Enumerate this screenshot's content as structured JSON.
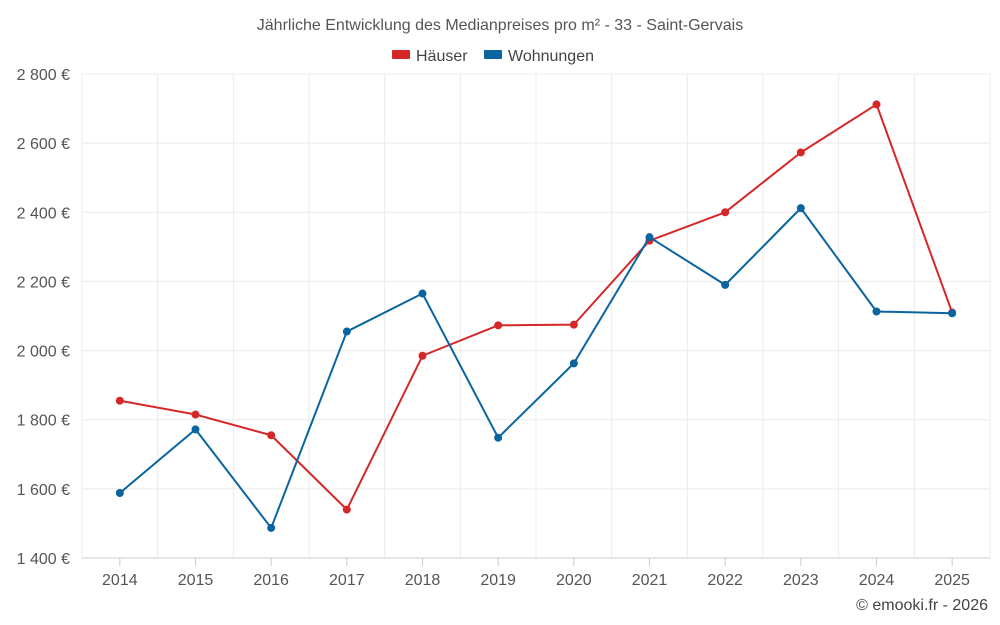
{
  "chart_data": {
    "type": "line",
    "title": "Jährliche Entwicklung des Medianpreises pro m² - 33 - Saint-Gervais",
    "x": [
      "2014",
      "2015",
      "2016",
      "2017",
      "2018",
      "2019",
      "2020",
      "2021",
      "2022",
      "2023",
      "2024",
      "2025"
    ],
    "series": [
      {
        "name": "Häuser",
        "color": "#d62728",
        "values": [
          1855,
          1815,
          1755,
          1540,
          1985,
          2073,
          2075,
          2318,
          2400,
          2573,
          2712,
          2110
        ]
      },
      {
        "name": "Wohnungen",
        "color": "#0a64a0",
        "values": [
          1588,
          1772,
          1487,
          2055,
          2165,
          1748,
          1963,
          2328,
          2190,
          2412,
          2113,
          2108
        ]
      }
    ],
    "ylim": [
      1400,
      2800
    ],
    "yticks": [
      1400,
      1600,
      1800,
      2000,
      2200,
      2400,
      2600,
      2800
    ],
    "ytick_labels": [
      "1 400 €",
      "1 600 €",
      "1 800 €",
      "2 000 €",
      "2 200 €",
      "2 400 €",
      "2 600 €",
      "2 800 €"
    ],
    "xlabel": "",
    "ylabel": "",
    "grid": true,
    "legend_position": "top-center"
  },
  "credit": "© emooki.fr - 2026"
}
